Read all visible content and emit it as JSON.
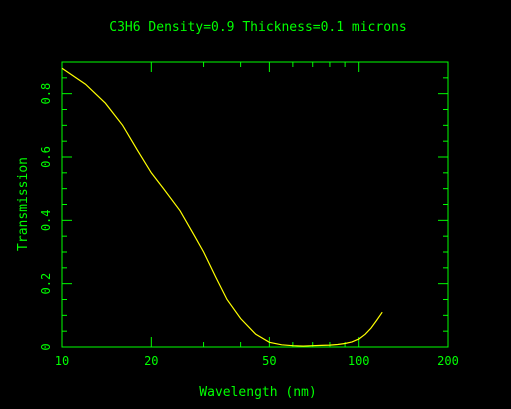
{
  "chart_data": {
    "type": "line",
    "title": "C3H6 Density=0.9 Thickness=0.1 microns",
    "xlabel": "Wavelength (nm)",
    "ylabel": "Transmission",
    "x_scale": "log",
    "xlim": [
      10,
      200
    ],
    "ylim": [
      0,
      0.9
    ],
    "x_ticks": [
      10,
      20,
      50,
      100,
      200
    ],
    "x_tick_labels": [
      "10",
      "20",
      "50",
      "100",
      "200"
    ],
    "y_ticks": [
      0,
      0.2,
      0.4,
      0.6,
      0.8
    ],
    "y_tick_labels": [
      "0",
      "0.2",
      "0.4",
      "0.6",
      "0.8"
    ],
    "grid": false,
    "colors": {
      "axes": "#00ff00",
      "curve": "#ffff00",
      "background": "#000000"
    },
    "series": [
      {
        "x": [
          10,
          12,
          14,
          16,
          18,
          20,
          22,
          25,
          28,
          30,
          33,
          36,
          40,
          45,
          50,
          55,
          60,
          65,
          70,
          75,
          80,
          85,
          90,
          95,
          100,
          105,
          110,
          115,
          120
        ],
        "y": [
          0.88,
          0.83,
          0.77,
          0.7,
          0.62,
          0.55,
          0.5,
          0.43,
          0.35,
          0.3,
          0.22,
          0.15,
          0.09,
          0.04,
          0.015,
          0.007,
          0.004,
          0.003,
          0.004,
          0.005,
          0.006,
          0.008,
          0.011,
          0.016,
          0.025,
          0.04,
          0.06,
          0.085,
          0.11
        ]
      }
    ]
  }
}
